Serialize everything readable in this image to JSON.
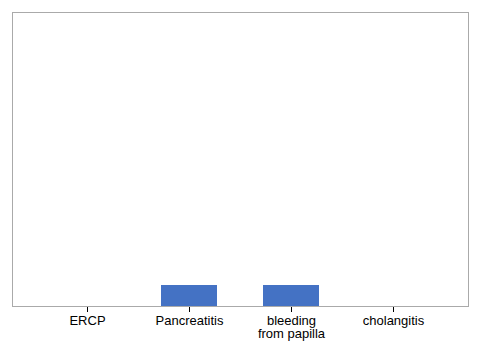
{
  "chart_data": {
    "type": "bar",
    "categories": [
      "ERCP",
      "Pancreatitis",
      "bleeding\nfrom papilla",
      "cholangitis"
    ],
    "values": [
      0,
      2,
      2,
      0
    ],
    "color": "#4472C4",
    "ylim": [
      0,
      28
    ],
    "grid": false,
    "tick_labels": "x"
  }
}
